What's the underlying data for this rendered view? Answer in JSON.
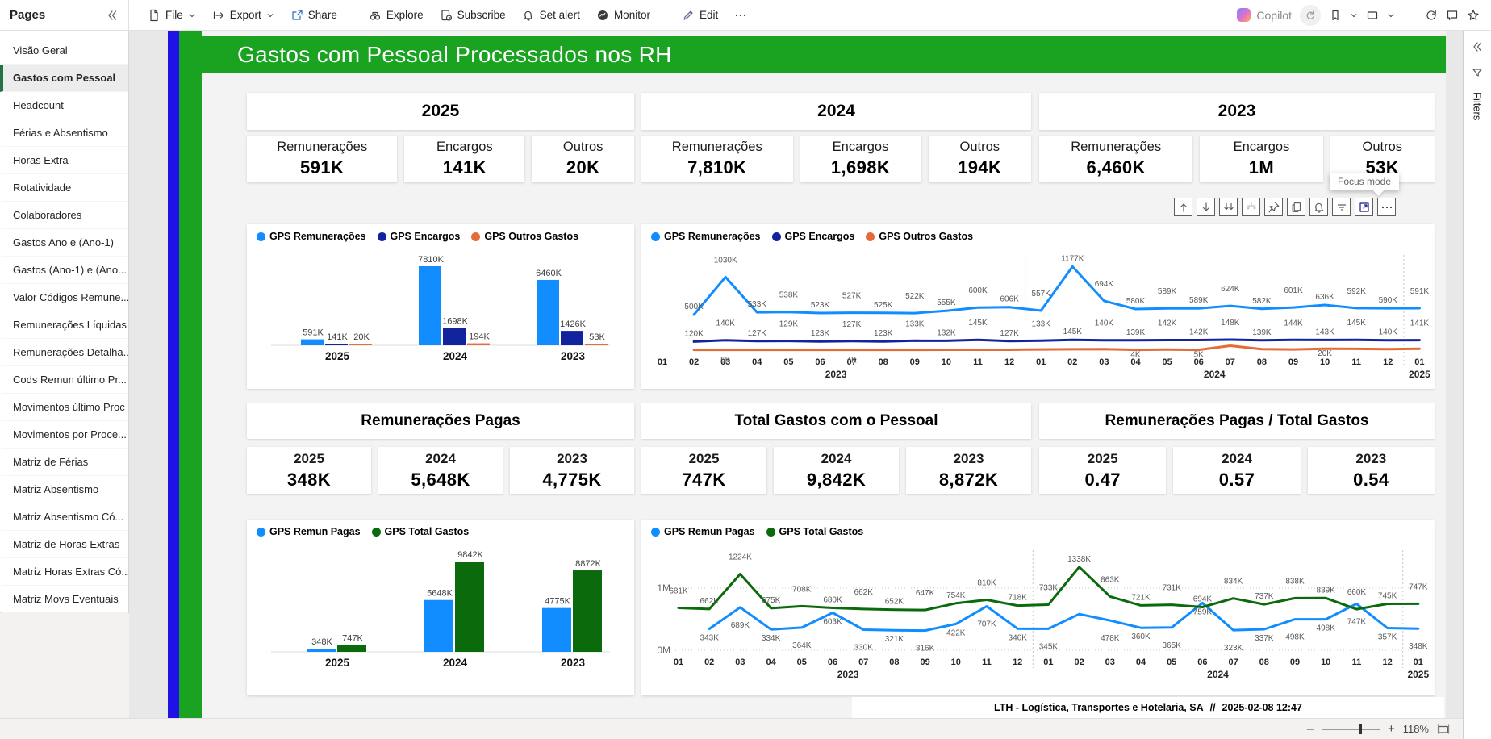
{
  "toolbar": {
    "pages_label": "Pages",
    "copilot_label": "Copilot",
    "menu": [
      {
        "label": "File",
        "icon": "file",
        "chevron": true
      },
      {
        "label": "Export",
        "icon": "export",
        "chevron": true
      },
      {
        "label": "Share",
        "icon": "share"
      },
      {
        "divider": true
      },
      {
        "label": "Explore",
        "icon": "explore"
      },
      {
        "label": "Subscribe",
        "icon": "subscribe"
      },
      {
        "label": "Set alert",
        "icon": "bell"
      },
      {
        "label": "Monitor",
        "icon": "monitor"
      },
      {
        "divider": true
      },
      {
        "label": "Edit",
        "icon": "edit"
      },
      {
        "label": "",
        "icon": "more"
      }
    ]
  },
  "sidebar": {
    "items": [
      {
        "label": "Visão Geral"
      },
      {
        "label": "Gastos com Pessoal",
        "selected": true
      },
      {
        "label": "Headcount"
      },
      {
        "label": "Férias e Absentismo"
      },
      {
        "label": "Horas Extra"
      },
      {
        "label": "Rotatividade"
      },
      {
        "label": "Colaboradores"
      },
      {
        "label": "Gastos Ano e (Ano-1)"
      },
      {
        "label": "Gastos (Ano-1) e (Ano..."
      },
      {
        "label": "Valor Códigos Remune..."
      },
      {
        "label": "Remunerações Líquidas"
      },
      {
        "label": "Remunerações Detalha..."
      },
      {
        "label": "Cods Remun último Pr..."
      },
      {
        "label": "Movimentos último Proc"
      },
      {
        "label": "Movimentos por Proce..."
      },
      {
        "label": "Matriz de Férias"
      },
      {
        "label": "Matriz Absentismo"
      },
      {
        "label": "Matriz Absentismo Có..."
      },
      {
        "label": "Matriz de Horas Extras"
      },
      {
        "label": "Matriz Horas Extras Có..."
      },
      {
        "label": "Matriz Movs Eventuais"
      }
    ]
  },
  "report": {
    "title": "Gastos com Pessoal Processados nos RH",
    "year_groups": [
      {
        "year": "2025",
        "kpis": [
          {
            "label": "Remunerações",
            "value": "591K"
          },
          {
            "label": "Encargos",
            "value": "141K"
          },
          {
            "label": "Outros",
            "value": "20K"
          }
        ]
      },
      {
        "year": "2024",
        "kpis": [
          {
            "label": "Remunerações",
            "value": "7,810K"
          },
          {
            "label": "Encargos",
            "value": "1,698K"
          },
          {
            "label": "Outros",
            "value": "194K"
          }
        ]
      },
      {
        "year": "2023",
        "kpis": [
          {
            "label": "Remunerações",
            "value": "6,460K"
          },
          {
            "label": "Encargos",
            "value": "1M"
          },
          {
            "label": "Outros",
            "value": "53K"
          }
        ]
      }
    ],
    "mid_sections": [
      {
        "title": "Remunerações Pagas",
        "kpis": [
          {
            "label": "2025",
            "value": "348K"
          },
          {
            "label": "2024",
            "value": "5,648K"
          },
          {
            "label": "2023",
            "value": "4,775K"
          }
        ]
      },
      {
        "title": "Total Gastos com o Pessoal",
        "kpis": [
          {
            "label": "2025",
            "value": "747K"
          },
          {
            "label": "2024",
            "value": "9,842K"
          },
          {
            "label": "2023",
            "value": "8,872K"
          }
        ]
      },
      {
        "title": "Remunerações Pagas / Total Gastos",
        "kpis": [
          {
            "label": "2025",
            "value": "0.47"
          },
          {
            "label": "2024",
            "value": "0.57"
          },
          {
            "label": "2023",
            "value": "0.54"
          }
        ]
      }
    ],
    "visual_header_icons": [
      "drill-up",
      "drill-down",
      "drill-next-level",
      "expand-all",
      "pin",
      "copy",
      "alert",
      "filter",
      "focus-mode",
      "more"
    ],
    "focus_tooltip": "Focus mode",
    "footer": {
      "company": "LTH - Logística, Transportes e Hotelaria, SA",
      "separator": "//",
      "timestamp": "2025-02-08 12:47"
    }
  },
  "filters_pane": {
    "label": "Filters"
  },
  "status_bar": {
    "zoom_level": "118%"
  },
  "colors": {
    "title_green": "#1AA321",
    "stripe_blue": "#2012E6",
    "sidebar_accent": "#217346",
    "series_blue": "#118DFF",
    "series_navy": "#12239E",
    "series_orange": "#E66C37",
    "series_green": "#0B6A0B"
  },
  "chart_data": [
    {
      "id": "top-bar",
      "type": "bar",
      "title": "",
      "legend_position": "top",
      "grid": false,
      "categories": [
        "2025",
        "2024",
        "2023"
      ],
      "series": [
        {
          "name": "GPS Remunerações",
          "color": "#118DFF",
          "values": [
            591,
            7810,
            6460
          ],
          "labels": [
            "591K",
            "7810K",
            "6460K"
          ]
        },
        {
          "name": "GPS Encargos",
          "color": "#12239E",
          "values": [
            141,
            1698,
            1426
          ],
          "labels": [
            "141K",
            "1698K",
            "1426K"
          ]
        },
        {
          "name": "GPS Outros Gastos",
          "color": "#E66C37",
          "values": [
            20,
            194,
            53
          ],
          "labels": [
            "20K",
            "194K",
            "53K"
          ]
        }
      ],
      "unit": "K",
      "ylim": [
        0,
        7810
      ]
    },
    {
      "id": "top-line",
      "type": "line",
      "legend_position": "top",
      "ylim": [
        0,
        1250
      ],
      "unit": "K",
      "x_months": [
        "01",
        "02",
        "03",
        "04",
        "05",
        "06",
        "07",
        "08",
        "09",
        "10",
        "11",
        "12",
        "01",
        "02",
        "03",
        "04",
        "05",
        "06",
        "07",
        "08",
        "09",
        "10",
        "11",
        "12",
        "01"
      ],
      "x_years": [
        {
          "label": "2023",
          "from": 0,
          "to": 11
        },
        {
          "label": "2024",
          "from": 12,
          "to": 23
        },
        {
          "label": "2025",
          "from": 24,
          "to": 24
        }
      ],
      "series": [
        {
          "name": "GPS Remunerações",
          "color": "#118DFF",
          "label_pos": "above",
          "values": [
            null,
            500,
            1030,
            533,
            538,
            523,
            527,
            525,
            522,
            555,
            600,
            606,
            557,
            1177,
            694,
            580,
            589,
            589,
            624,
            582,
            601,
            636,
            592,
            590,
            591
          ],
          "labels": [
            null,
            "500K",
            "1030K",
            "533K",
            "538K",
            "523K",
            "527K",
            "525K",
            "522K",
            "555K",
            "600K",
            "606K",
            "557K",
            "1177K",
            "694K",
            "580K",
            "589K",
            "589K",
            "624K",
            "582K",
            "601K",
            "636K",
            "592K",
            "590K",
            "591K"
          ]
        },
        {
          "name": "GPS Encargos",
          "color": "#12239E",
          "label_pos": "above",
          "values": [
            null,
            120,
            140,
            127,
            129,
            123,
            127,
            123,
            133,
            132,
            145,
            127,
            133,
            145,
            140,
            139,
            142,
            142,
            148,
            139,
            144,
            143,
            145,
            140,
            141
          ],
          "labels": [
            null,
            "120K",
            "140K",
            "127K",
            "129K",
            "123K",
            "127K",
            "123K",
            "133K",
            "132K",
            "145K",
            "127K",
            "133K",
            "145K",
            "140K",
            "139K",
            "142K",
            "142K",
            "148K",
            "139K",
            "144K",
            "143K",
            "145K",
            "140K",
            "141K"
          ]
        },
        {
          "name": "GPS Outros Gastos",
          "color": "#E66C37",
          "label_pos": "below",
          "values": [
            null,
            5,
            5,
            4,
            4,
            4,
            4,
            4,
            5,
            6,
            6,
            6,
            10,
            12,
            15,
            4,
            8,
            5,
            62,
            15,
            10,
            20,
            18,
            15,
            20
          ],
          "labels": [
            null,
            null,
            "5K",
            null,
            null,
            null,
            "4K",
            null,
            null,
            null,
            null,
            null,
            null,
            null,
            null,
            "4K",
            null,
            "5K",
            null,
            null,
            null,
            "20K",
            null,
            null,
            null
          ]
        }
      ]
    },
    {
      "id": "bottom-bar",
      "type": "bar",
      "legend_position": "top",
      "grid": false,
      "categories": [
        "2025",
        "2024",
        "2023"
      ],
      "series": [
        {
          "name": "GPS Remun Pagas",
          "color": "#118DFF",
          "values": [
            348,
            5648,
            4775
          ],
          "labels": [
            "348K",
            "5648K",
            "4775K"
          ]
        },
        {
          "name": "GPS Total Gastos",
          "color": "#0B6A0B",
          "values": [
            747,
            9842,
            8872
          ],
          "labels": [
            "747K",
            "9842K",
            "8872K"
          ]
        }
      ],
      "unit": "K",
      "ylim": [
        0,
        9842
      ]
    },
    {
      "id": "bottom-line",
      "type": "line",
      "legend_position": "top",
      "ylim": [
        0,
        1400
      ],
      "unit": "K",
      "y_axis": [
        {
          "label": "1M",
          "value": 1000
        },
        {
          "label": "0M",
          "value": 0
        }
      ],
      "x_months": [
        "01",
        "02",
        "03",
        "04",
        "05",
        "06",
        "07",
        "08",
        "09",
        "10",
        "11",
        "12",
        "01",
        "02",
        "03",
        "04",
        "05",
        "06",
        "07",
        "08",
        "09",
        "10",
        "11",
        "12",
        "01"
      ],
      "x_years": [
        {
          "label": "2023",
          "from": 0,
          "to": 11
        },
        {
          "label": "2024",
          "from": 12,
          "to": 23
        },
        {
          "label": "2025",
          "from": 24,
          "to": 24
        }
      ],
      "series": [
        {
          "name": "GPS Remun Pagas",
          "color": "#118DFF",
          "label_pos": "below",
          "values": [
            null,
            343,
            689,
            334,
            364,
            603,
            330,
            321,
            316,
            422,
            707,
            346,
            345,
            581,
            478,
            360,
            365,
            759,
            323,
            337,
            498,
            498,
            747,
            357,
            348
          ],
          "labels": [
            null,
            "343K",
            "689K",
            "334K",
            "364K",
            "603K",
            "330K",
            "321K",
            "316K",
            "422K",
            "707K",
            "346K",
            "345K",
            null,
            "478K",
            "360K",
            "365K",
            "759K",
            "323K",
            "337K",
            "498K",
            "498K",
            "747K",
            "357K",
            "348K"
          ]
        },
        {
          "name": "GPS Total Gastos",
          "color": "#0B6A0B",
          "label_pos": "above",
          "values": [
            681,
            662,
            1224,
            675,
            708,
            680,
            662,
            652,
            647,
            754,
            810,
            718,
            733,
            1338,
            863,
            721,
            731,
            694,
            834,
            737,
            838,
            839,
            660,
            745,
            747
          ],
          "labels": [
            "681K",
            "662K",
            "1224K",
            "675K",
            "708K",
            "680K",
            "662K",
            "652K",
            "647K",
            "754K",
            "810K",
            "718K",
            "733K",
            "1338K",
            "863K",
            "721K",
            "731K",
            "694K",
            "834K",
            "737K",
            "838K",
            "839K",
            "660K",
            "745K",
            "747K"
          ]
        }
      ]
    }
  ]
}
